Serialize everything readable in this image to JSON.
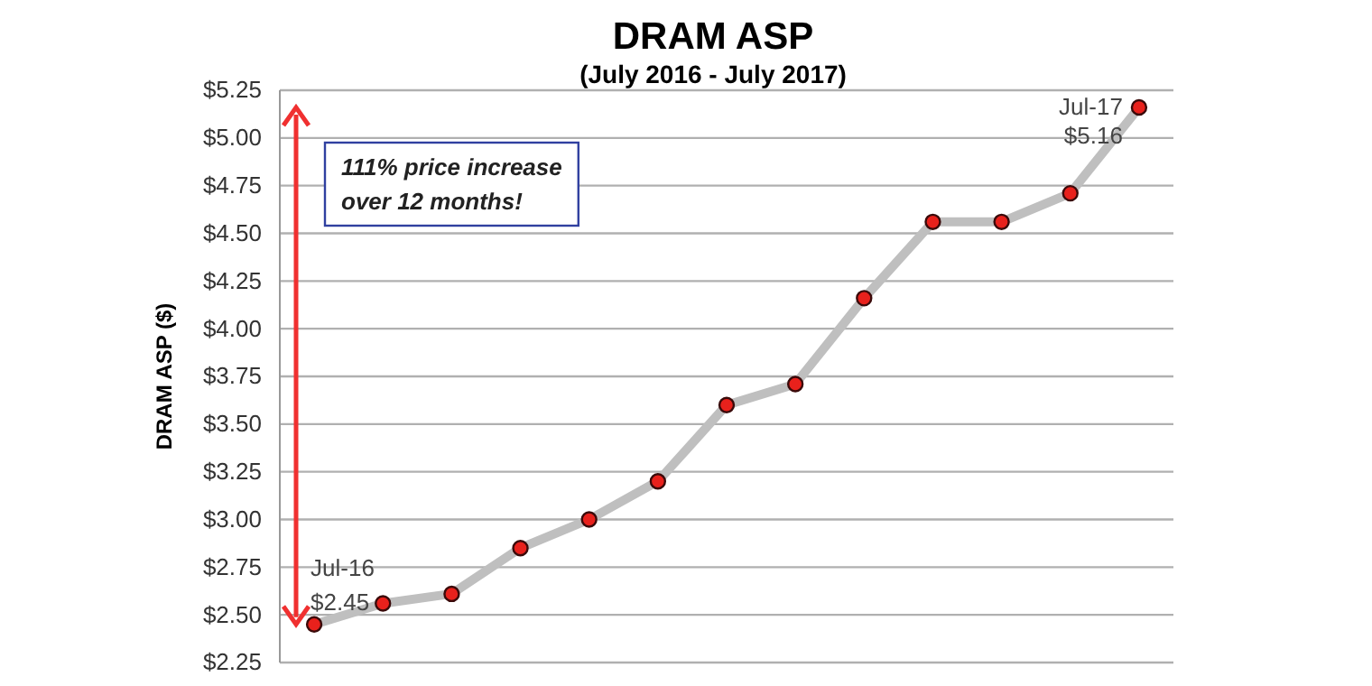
{
  "chart_data": {
    "type": "line",
    "title": "DRAM ASP",
    "subtitle": "(July 2016 - July 2017)",
    "ylabel": "DRAM ASP ($)",
    "categories": [
      null,
      null,
      null,
      null,
      null,
      null,
      null,
      null,
      null,
      null,
      null,
      null,
      null
    ],
    "series": [
      {
        "color": "#bfbfbf",
        "values": [
          2.45,
          2.56,
          2.61,
          2.85,
          3.0,
          3.2,
          3.6,
          3.71,
          4.16,
          4.56,
          4.56,
          4.71,
          5.16
        ]
      }
    ],
    "ylim": [
      2.25,
      5.25
    ],
    "yticks": [
      {
        "value": 2.25,
        "label": "$2.25"
      },
      {
        "value": 2.5,
        "label": "$2.50"
      },
      {
        "value": 2.75,
        "label": "$2.75"
      },
      {
        "value": 3,
        "label": "$3.00"
      },
      {
        "value": 3.25,
        "label": "$3.25"
      },
      {
        "value": 3.5,
        "label": "$3.50"
      },
      {
        "value": 3.75,
        "label": "$3.75"
      },
      {
        "value": 4,
        "label": "$4.00"
      },
      {
        "value": 4.25,
        "label": "$4.25"
      },
      {
        "value": 4.5,
        "label": "$4.50"
      },
      {
        "value": 4.75,
        "label": "$4.75"
      },
      {
        "value": 5,
        "label": "$5.00"
      },
      {
        "value": 5.25,
        "label": "$5.25"
      }
    ],
    "grid": "y",
    "tick_labels": "y",
    "marker": "circle",
    "line_style": "solid",
    "annotations": [
      "111% price increase\nover 12 months!",
      "Jul-16",
      "$2.45",
      "Jul-17",
      "$5.16"
    ]
  }
}
